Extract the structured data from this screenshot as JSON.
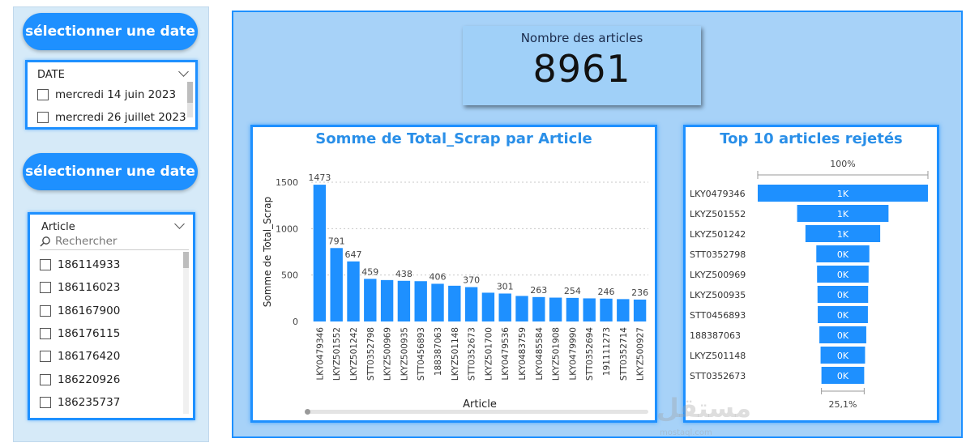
{
  "filters": {
    "date_button_label": "sélectionner une date",
    "date_slicer": {
      "title": "DATE",
      "items": [
        "mercredi 14 juin 2023",
        "mercredi 26 juillet 2023"
      ]
    },
    "article_button_label": "sélectionner une date",
    "article_slicer": {
      "title": "Article",
      "search_placeholder": "Rechercher",
      "items": [
        "186114933",
        "186116023",
        "186167900",
        "186176115",
        "186176420",
        "186220926",
        "186235737"
      ]
    }
  },
  "kpi": {
    "title": "Nombre des articles",
    "value": "8961"
  },
  "watermark": {
    "text": "مستقل",
    "subtext": "mostaql.com"
  },
  "colors": {
    "accent": "#1e90ff",
    "panel_bg": "#a7d2f8",
    "title_blue": "#2a8fe8"
  },
  "chart_data": [
    {
      "type": "bar",
      "title": "Somme de Total_Scrap par Article",
      "xlabel": "Article",
      "ylabel": "Somme de Total_Scrap",
      "ylim": [
        0,
        1500
      ],
      "yticks": [
        0,
        500,
        1000,
        1500
      ],
      "grid": true,
      "categories": [
        "LKY0479346",
        "LKYZ501552",
        "LKYZ501242",
        "STT0352798",
        "LKYZ500969",
        "LKYZ500935",
        "STT0456893",
        "188387063",
        "LKYZ501148",
        "STT0352673",
        "LKYZ501700",
        "LKY0479536",
        "LKY0483759",
        "LKY0485584",
        "LKYZ501908",
        "LKY0479990",
        "STT0352694",
        "191111273",
        "STT0352714",
        "LKYZ500927"
      ],
      "values": [
        1473,
        791,
        647,
        459,
        446,
        438,
        434,
        406,
        385,
        370,
        310,
        301,
        275,
        263,
        257,
        254,
        249,
        246,
        241,
        236
      ],
      "data_labels": {
        "0": "1473",
        "1": "791",
        "2": "647",
        "3": "459",
        "5": "438",
        "7": "406",
        "9": "370",
        "11": "301",
        "13": "263",
        "15": "254",
        "17": "246",
        "19": "236"
      }
    },
    {
      "type": "bar",
      "orientation": "funnel",
      "title": "Top 10 articles rejetés",
      "top_label": "100%",
      "bottom_label": "25,1%",
      "categories": [
        "LKY0479346",
        "LKYZ501552",
        "LKYZ501242",
        "STT0352798",
        "LKYZ500969",
        "LKYZ500935",
        "STT0456893",
        "188387063",
        "LKYZ501148",
        "STT0352673"
      ],
      "values": [
        1473,
        791,
        647,
        459,
        446,
        438,
        434,
        406,
        385,
        370
      ],
      "bar_labels": [
        "1K",
        "1K",
        "1K",
        "0K",
        "0K",
        "0K",
        "0K",
        "0K",
        "0K",
        "0K"
      ]
    }
  ]
}
